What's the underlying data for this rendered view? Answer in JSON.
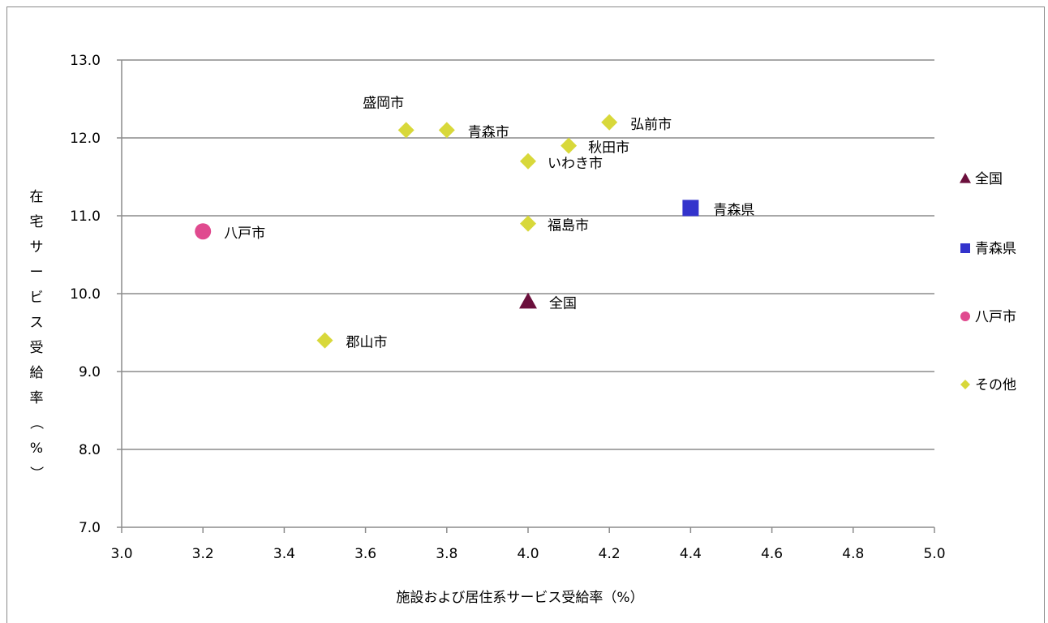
{
  "chart_data": {
    "type": "scatter",
    "xlabel": "施設および居住系サービス受給率（%）",
    "ylabel": "在宅サービス受給率（%）",
    "xlim": [
      3.0,
      5.0
    ],
    "ylim": [
      7.0,
      13.0
    ],
    "x_ticks": [
      "3.0",
      "3.2",
      "3.4",
      "3.6",
      "3.8",
      "4.0",
      "4.2",
      "4.4",
      "4.6",
      "4.8",
      "5.0"
    ],
    "y_ticks": [
      "7.0",
      "8.0",
      "9.0",
      "10.0",
      "11.0",
      "12.0",
      "13.0"
    ],
    "grid": "horizontal",
    "legend_position": "right",
    "series": [
      {
        "name": "全国",
        "marker": "triangle",
        "color": "#6b0f3c",
        "points": [
          {
            "x": 4.0,
            "y": 9.9,
            "label": "全国"
          }
        ]
      },
      {
        "name": "青森県",
        "marker": "square",
        "color": "#3333cc",
        "points": [
          {
            "x": 4.4,
            "y": 11.1,
            "label": "青森県"
          }
        ]
      },
      {
        "name": "八戸市",
        "marker": "circle",
        "color": "#e04a8f",
        "points": [
          {
            "x": 3.2,
            "y": 10.8,
            "label": "八戸市"
          }
        ]
      },
      {
        "name": "その他",
        "marker": "diamond",
        "color": "#d8d83a",
        "points": [
          {
            "x": 3.7,
            "y": 12.1,
            "label": "盛岡市"
          },
          {
            "x": 3.8,
            "y": 12.1,
            "label": "青森市"
          },
          {
            "x": 4.2,
            "y": 12.2,
            "label": "弘前市"
          },
          {
            "x": 4.1,
            "y": 11.9,
            "label": "秋田市"
          },
          {
            "x": 4.0,
            "y": 11.7,
            "label": "いわき市"
          },
          {
            "x": 4.0,
            "y": 10.9,
            "label": "福島市"
          },
          {
            "x": 3.5,
            "y": 9.4,
            "label": "郡山市"
          }
        ]
      }
    ]
  }
}
